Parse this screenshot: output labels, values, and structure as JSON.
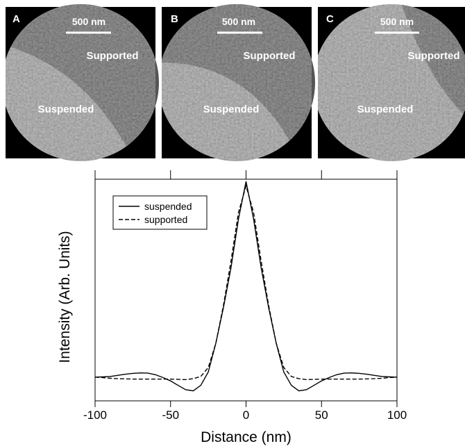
{
  "panels": [
    {
      "label": "A",
      "scale_bar": "500 nm",
      "regions": [
        "Supported",
        "Suspended"
      ]
    },
    {
      "label": "B",
      "scale_bar": "500 nm",
      "regions": [
        "Supported",
        "Suspended"
      ]
    },
    {
      "label": "C",
      "scale_bar": "500 nm",
      "regions": [
        "Supported",
        "Suspended"
      ]
    }
  ],
  "chart_data": {
    "type": "line",
    "xlabel": "Distance (nm)",
    "ylabel": "Intensity (Arb. Units)",
    "x": [
      -100,
      -95,
      -90,
      -85,
      -80,
      -75,
      -70,
      -65,
      -60,
      -55,
      -50,
      -45,
      -40,
      -35,
      -30,
      -25,
      -20,
      -15,
      -10,
      -5,
      0,
      5,
      10,
      15,
      20,
      25,
      30,
      35,
      40,
      45,
      50,
      55,
      60,
      65,
      70,
      75,
      80,
      85,
      90,
      95,
      100
    ],
    "series": [
      {
        "name": "suspended",
        "color": "#000000",
        "dash": "solid",
        "values": [
          0.107,
          0.108,
          0.11,
          0.115,
          0.12,
          0.124,
          0.126,
          0.125,
          0.118,
          0.105,
          0.09,
          0.07,
          0.05,
          0.045,
          0.07,
          0.13,
          0.26,
          0.42,
          0.6,
          0.82,
          0.99,
          0.82,
          0.6,
          0.42,
          0.26,
          0.13,
          0.07,
          0.045,
          0.05,
          0.07,
          0.09,
          0.105,
          0.118,
          0.125,
          0.126,
          0.124,
          0.12,
          0.115,
          0.11,
          0.108,
          0.107
        ]
      },
      {
        "name": "supported",
        "color": "#000000",
        "dash": "dashed",
        "values": [
          0.107,
          0.105,
          0.102,
          0.1,
          0.099,
          0.098,
          0.098,
          0.098,
          0.098,
          0.098,
          0.098,
          0.097,
          0.096,
          0.1,
          0.11,
          0.15,
          0.26,
          0.43,
          0.63,
          0.85,
          0.97,
          0.85,
          0.63,
          0.43,
          0.26,
          0.15,
          0.11,
          0.1,
          0.096,
          0.097,
          0.098,
          0.098,
          0.098,
          0.098,
          0.098,
          0.098,
          0.099,
          0.1,
          0.102,
          0.105,
          0.107
        ]
      }
    ],
    "xlim": [
      -100,
      100
    ],
    "xticks": [
      -100,
      -50,
      0,
      50,
      100
    ],
    "ylim": [
      0,
      1
    ],
    "legend": "upper-left"
  }
}
